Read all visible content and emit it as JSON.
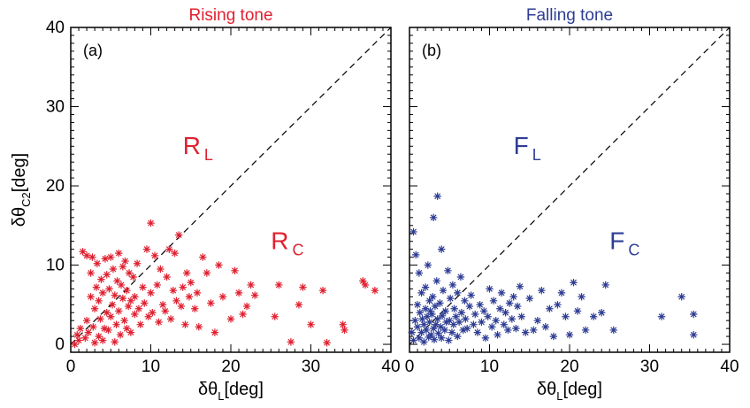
{
  "chart_data": [
    {
      "type": "scatter",
      "panel_tag": "(a)",
      "title": "Rising tone",
      "xlabel": "δθL[deg]",
      "ylabel": "δθC2[deg]",
      "xlim": [
        0,
        40
      ],
      "ylim": [
        -1,
        40
      ],
      "x_ticks": [
        0,
        10,
        20,
        30,
        40
      ],
      "y_ticks": [
        0,
        10,
        20,
        30,
        40
      ],
      "color": "#e02030",
      "marker": "asterisk",
      "diagonal": "dashed y = x",
      "region_labels": [
        {
          "main": "R",
          "sub": "L",
          "x": 14,
          "y": 24
        },
        {
          "main": "R",
          "sub": "C",
          "x": 25,
          "y": 12
        }
      ],
      "series": [
        {
          "values": [
            [
              0.5,
              0.0
            ],
            [
              0.8,
              1.2
            ],
            [
              1.0,
              0.5
            ],
            [
              1.2,
              2.0
            ],
            [
              1.5,
              11.7
            ],
            [
              1.8,
              0.8
            ],
            [
              2.0,
              3.0
            ],
            [
              2.0,
              11.2
            ],
            [
              2.2,
              1.5
            ],
            [
              2.5,
              6.0
            ],
            [
              2.5,
              9.0
            ],
            [
              2.7,
              11.0
            ],
            [
              2.8,
              2.2
            ],
            [
              3.0,
              4.5
            ],
            [
              3.0,
              0.2
            ],
            [
              3.2,
              7.2
            ],
            [
              3.3,
              10.2
            ],
            [
              3.5,
              1.0
            ],
            [
              3.5,
              5.5
            ],
            [
              3.7,
              3.2
            ],
            [
              3.8,
              8.2
            ],
            [
              4.0,
              0.5
            ],
            [
              4.0,
              6.5
            ],
            [
              4.2,
              2.0
            ],
            [
              4.3,
              10.8
            ],
            [
              4.5,
              4.0
            ],
            [
              4.5,
              8.8
            ],
            [
              4.7,
              1.8
            ],
            [
              4.8,
              7.0
            ],
            [
              5.0,
              3.5
            ],
            [
              5.0,
              11.0
            ],
            [
              5.2,
              5.0
            ],
            [
              5.3,
              9.5
            ],
            [
              5.5,
              0.3
            ],
            [
              5.5,
              6.2
            ],
            [
              5.7,
              2.5
            ],
            [
              5.8,
              8.0
            ],
            [
              6.0,
              4.2
            ],
            [
              6.0,
              11.5
            ],
            [
              6.2,
              1.2
            ],
            [
              6.3,
              7.5
            ],
            [
              6.5,
              5.8
            ],
            [
              6.5,
              9.8
            ],
            [
              6.7,
              3.0
            ],
            [
              6.8,
              10.5
            ],
            [
              7.0,
              6.8
            ],
            [
              7.0,
              2.0
            ],
            [
              7.2,
              4.8
            ],
            [
              7.3,
              9.0
            ],
            [
              7.5,
              5.5
            ],
            [
              7.5,
              1.5
            ],
            [
              7.8,
              8.5
            ],
            [
              8.0,
              3.8
            ],
            [
              8.0,
              6.0
            ],
            [
              8.3,
              10.2
            ],
            [
              8.5,
              4.5
            ],
            [
              8.7,
              2.5
            ],
            [
              9.0,
              7.2
            ],
            [
              9.2,
              5.2
            ],
            [
              9.5,
              12.0
            ],
            [
              9.7,
              3.5
            ],
            [
              10.0,
              6.5
            ],
            [
              10.0,
              15.3
            ],
            [
              10.2,
              4.0
            ],
            [
              10.5,
              11.2
            ],
            [
              10.8,
              7.5
            ],
            [
              11.0,
              2.8
            ],
            [
              11.2,
              9.5
            ],
            [
              11.5,
              5.0
            ],
            [
              11.8,
              4.2
            ],
            [
              12.0,
              8.5
            ],
            [
              12.3,
              12.0
            ],
            [
              12.5,
              3.2
            ],
            [
              12.8,
              6.8
            ],
            [
              13.0,
              11.5
            ],
            [
              13.2,
              5.5
            ],
            [
              13.5,
              13.8
            ],
            [
              13.8,
              4.8
            ],
            [
              14.0,
              7.2
            ],
            [
              14.3,
              2.5
            ],
            [
              14.5,
              9.0
            ],
            [
              14.8,
              6.0
            ],
            [
              15.0,
              7.8
            ],
            [
              15.5,
              4.5
            ],
            [
              15.8,
              6.5
            ],
            [
              16.0,
              2.2
            ],
            [
              16.5,
              11.0
            ],
            [
              17.0,
              9.0
            ],
            [
              17.5,
              5.2
            ],
            [
              18.0,
              1.5
            ],
            [
              18.5,
              10.0
            ],
            [
              19.0,
              6.0
            ],
            [
              20.0,
              3.2
            ],
            [
              20.5,
              9.3
            ],
            [
              21.0,
              6.5
            ],
            [
              21.5,
              3.8
            ],
            [
              22.0,
              4.8
            ],
            [
              22.5,
              7.5
            ],
            [
              23.0,
              6.2
            ],
            [
              25.5,
              3.5
            ],
            [
              26.0,
              7.5
            ],
            [
              27.5,
              0.3
            ],
            [
              28.5,
              5.0
            ],
            [
              29.0,
              7.2
            ],
            [
              30.0,
              2.5
            ],
            [
              31.5,
              6.8
            ],
            [
              32.0,
              0.2
            ],
            [
              34.0,
              2.5
            ],
            [
              34.2,
              1.8
            ],
            [
              36.5,
              8.0
            ],
            [
              36.8,
              7.5
            ],
            [
              38.0,
              6.8
            ]
          ]
        }
      ]
    },
    {
      "type": "scatter",
      "panel_tag": "(b)",
      "title": "Falling tone",
      "xlabel": "δθL[deg]",
      "xlim": [
        0,
        40
      ],
      "ylim": [
        -1,
        40
      ],
      "x_ticks": [
        0,
        10,
        20,
        30,
        40
      ],
      "color": "#2e3d94",
      "marker": "asterisk",
      "diagonal": "dashed y = x",
      "region_labels": [
        {
          "main": "F",
          "sub": "L",
          "x": 13,
          "y": 24
        },
        {
          "main": "F",
          "sub": "C",
          "x": 25,
          "y": 12
        }
      ],
      "series": [
        {
          "values": [
            [
              0.3,
              1.5
            ],
            [
              0.5,
              0.5
            ],
            [
              0.5,
              14.2
            ],
            [
              0.7,
              3.0
            ],
            [
              0.8,
              11.3
            ],
            [
              1.0,
              2.2
            ],
            [
              1.0,
              5.0
            ],
            [
              1.2,
              0.8
            ],
            [
              1.2,
              9.0
            ],
            [
              1.3,
              4.0
            ],
            [
              1.5,
              1.5
            ],
            [
              1.5,
              6.5
            ],
            [
              1.6,
              3.2
            ],
            [
              1.8,
              0.3
            ],
            [
              1.8,
              2.5
            ],
            [
              2.0,
              4.5
            ],
            [
              2.0,
              7.2
            ],
            [
              2.1,
              1.8
            ],
            [
              2.2,
              3.5
            ],
            [
              2.3,
              10.0
            ],
            [
              2.4,
              0.9
            ],
            [
              2.5,
              2.8
            ],
            [
              2.5,
              5.5
            ],
            [
              2.6,
              4.2
            ],
            [
              2.7,
              1.2
            ],
            [
              2.8,
              3.8
            ],
            [
              2.9,
              6.0
            ],
            [
              3.0,
              2.0
            ],
            [
              3.0,
              16.0
            ],
            [
              3.1,
              0.6
            ],
            [
              3.2,
              4.8
            ],
            [
              3.3,
              2.5
            ],
            [
              3.4,
              8.0
            ],
            [
              3.5,
              18.7
            ],
            [
              3.5,
              3.2
            ],
            [
              3.6,
              1.4
            ],
            [
              3.8,
              5.2
            ],
            [
              3.9,
              2.2
            ],
            [
              4.0,
              0.8
            ],
            [
              4.0,
              12.0
            ],
            [
              4.1,
              3.6
            ],
            [
              4.2,
              6.8
            ],
            [
              4.4,
              1.8
            ],
            [
              4.5,
              4.2
            ],
            [
              4.6,
              2.8
            ],
            [
              4.8,
              9.3
            ],
            [
              4.9,
              0.5
            ],
            [
              5.0,
              3.0
            ],
            [
              5.1,
              5.8
            ],
            [
              5.3,
              1.5
            ],
            [
              5.4,
              7.5
            ],
            [
              5.5,
              2.5
            ],
            [
              5.6,
              4.5
            ],
            [
              5.8,
              3.5
            ],
            [
              6.0,
              1.0
            ],
            [
              6.0,
              6.5
            ],
            [
              6.2,
              2.8
            ],
            [
              6.4,
              8.5
            ],
            [
              6.5,
              4.0
            ],
            [
              6.7,
              1.8
            ],
            [
              6.9,
              5.5
            ],
            [
              7.0,
              3.2
            ],
            [
              7.2,
              2.0
            ],
            [
              7.5,
              4.8
            ],
            [
              7.7,
              6.2
            ],
            [
              8.0,
              2.5
            ],
            [
              8.2,
              3.8
            ],
            [
              8.5,
              1.5
            ],
            [
              8.8,
              5.0
            ],
            [
              9.0,
              2.8
            ],
            [
              9.3,
              4.2
            ],
            [
              9.5,
              0.8
            ],
            [
              9.8,
              3.5
            ],
            [
              10.0,
              7.0
            ],
            [
              10.3,
              2.2
            ],
            [
              10.5,
              5.5
            ],
            [
              10.8,
              3.0
            ],
            [
              11.0,
              1.2
            ],
            [
              11.3,
              4.5
            ],
            [
              11.5,
              6.5
            ],
            [
              11.8,
              2.5
            ],
            [
              12.0,
              4.0
            ],
            [
              12.3,
              1.8
            ],
            [
              12.5,
              5.2
            ],
            [
              12.8,
              3.2
            ],
            [
              13.0,
              6.0
            ],
            [
              13.3,
              2.0
            ],
            [
              13.5,
              4.8
            ],
            [
              13.8,
              7.3
            ],
            [
              14.0,
              3.5
            ],
            [
              14.5,
              1.5
            ],
            [
              15.0,
              5.8
            ],
            [
              15.5,
              1.8
            ],
            [
              16.0,
              3.0
            ],
            [
              16.5,
              6.8
            ],
            [
              17.0,
              2.2
            ],
            [
              17.5,
              4.5
            ],
            [
              18.0,
              1.0
            ],
            [
              18.5,
              5.0
            ],
            [
              19.0,
              6.5
            ],
            [
              19.5,
              3.5
            ],
            [
              20.0,
              1.2
            ],
            [
              20.5,
              7.8
            ],
            [
              21.0,
              4.2
            ],
            [
              21.5,
              6.0
            ],
            [
              22.0,
              1.8
            ],
            [
              23.0,
              3.5
            ],
            [
              24.0,
              4.0
            ],
            [
              24.5,
              7.5
            ],
            [
              25.5,
              1.8
            ],
            [
              31.5,
              3.5
            ],
            [
              34.0,
              6.0
            ],
            [
              35.5,
              3.8
            ],
            [
              35.5,
              1.2
            ]
          ]
        }
      ]
    }
  ]
}
